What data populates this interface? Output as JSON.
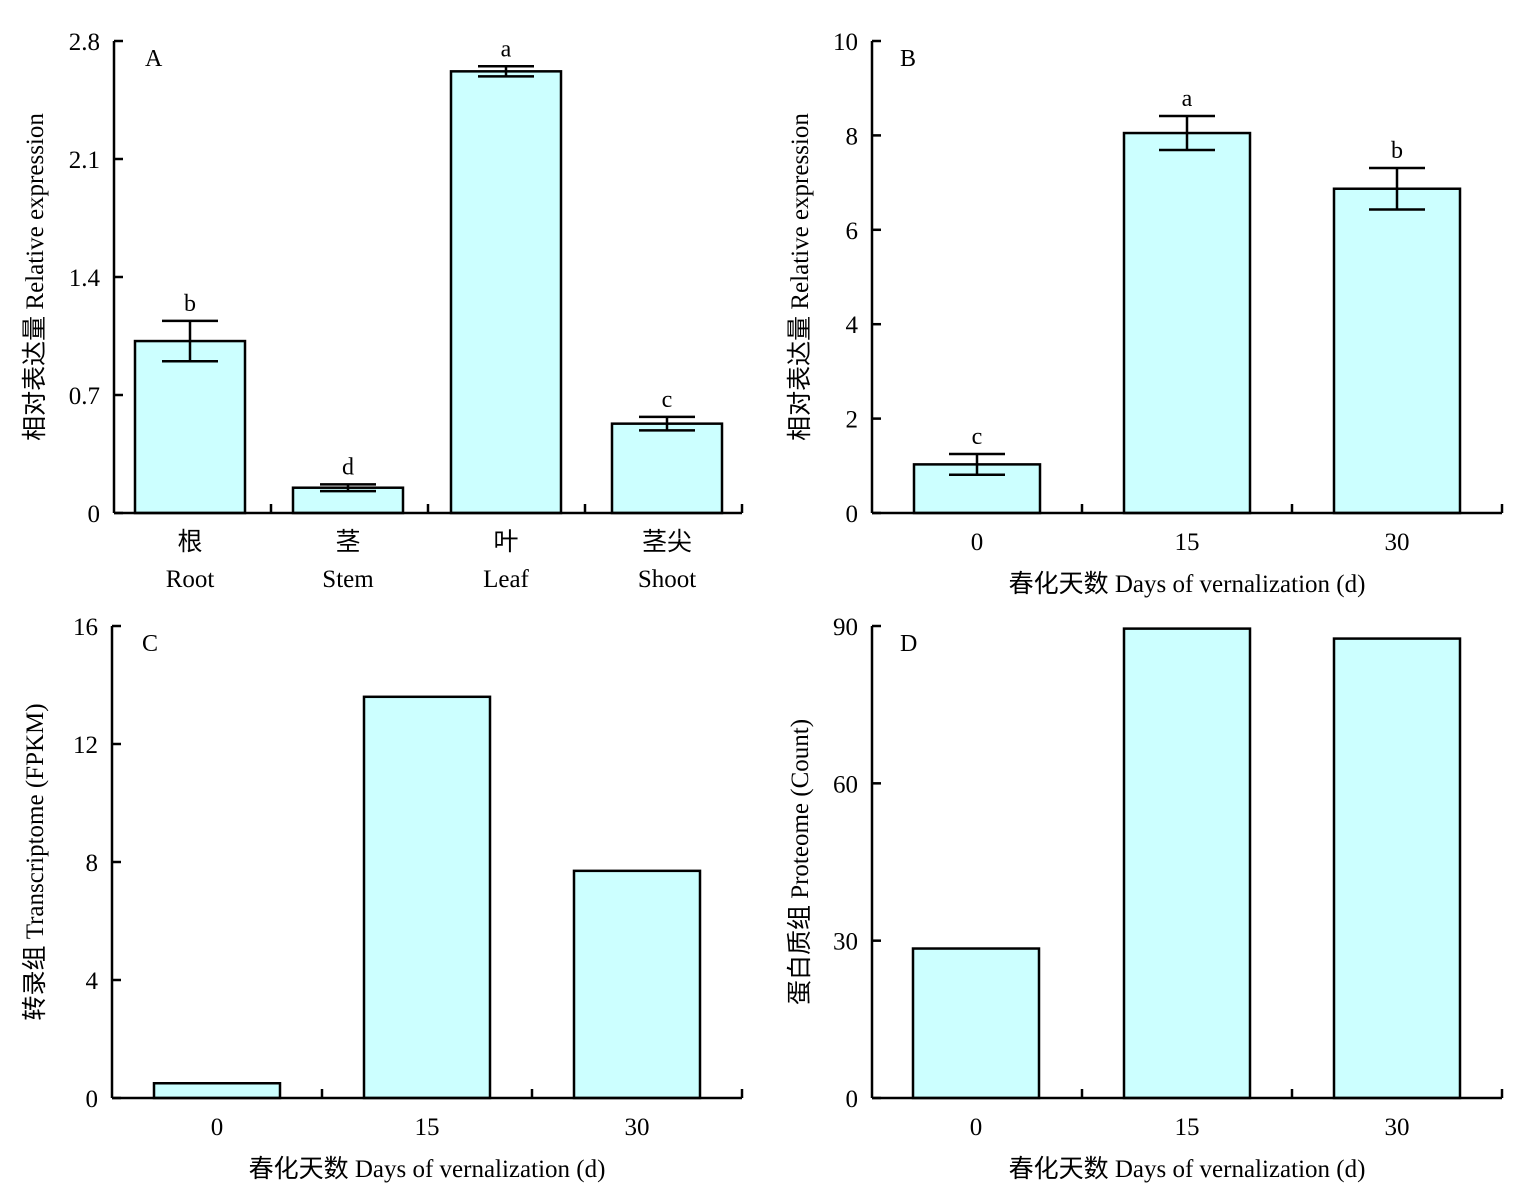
{
  "style": {
    "bar_fill": "#ccffff",
    "stroke": "#000000"
  },
  "chart_data": [
    {
      "panel": "A",
      "type": "bar",
      "categories": [
        [
          "根",
          "Root"
        ],
        [
          "茎",
          "Stem"
        ],
        [
          "叶",
          "Leaf"
        ],
        [
          "茎尖",
          "Shoot"
        ]
      ],
      "values": [
        1.02,
        0.15,
        2.62,
        0.53
      ],
      "errors": [
        0.12,
        0.02,
        0.03,
        0.04
      ],
      "significance": [
        "b",
        "d",
        "a",
        "c"
      ],
      "ylabel": "相对表达量 Relative expression",
      "xlabel": "",
      "ylim": [
        0,
        2.8
      ],
      "yticks": [
        "0",
        "0.7",
        "1.4",
        "2.1",
        "2.8"
      ]
    },
    {
      "panel": "B",
      "type": "bar",
      "categories": [
        [
          "0"
        ],
        [
          "15"
        ],
        [
          "30"
        ]
      ],
      "values": [
        1.03,
        8.05,
        6.87
      ],
      "errors": [
        0.22,
        0.36,
        0.44
      ],
      "significance": [
        "c",
        "a",
        "b"
      ],
      "ylabel": "相对表达量 Relative expression",
      "xlabel": "春化天数 Days of vernalization (d)",
      "ylim": [
        0,
        10
      ],
      "yticks": [
        "0",
        "2",
        "4",
        "6",
        "8",
        "10"
      ]
    },
    {
      "panel": "C",
      "type": "bar",
      "categories": [
        [
          "0"
        ],
        [
          "15"
        ],
        [
          "30"
        ]
      ],
      "values": [
        0.5,
        13.6,
        7.7
      ],
      "ylabel": "转录组 Transcriptome (FPKM)",
      "xlabel": "春化天数 Days of vernalization (d)",
      "ylim": [
        0,
        16
      ],
      "yticks": [
        "0",
        "4",
        "8",
        "12",
        "16"
      ]
    },
    {
      "panel": "D",
      "type": "bar",
      "categories": [
        [
          "0"
        ],
        [
          "15"
        ],
        [
          "30"
        ]
      ],
      "values": [
        28.5,
        89.5,
        87.6
      ],
      "ylabel": "蛋白质组 Proteome (Count)",
      "xlabel": "春化天数 Days of vernalization (d)",
      "ylim": [
        0,
        90
      ],
      "yticks": [
        "0",
        "30",
        "60",
        "90"
      ]
    }
  ]
}
